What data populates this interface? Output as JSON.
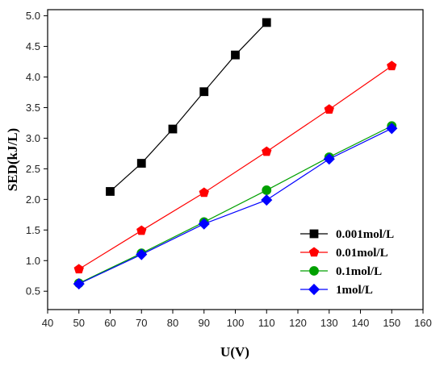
{
  "chart_data": {
    "type": "line",
    "xlabel": "U(V)",
    "ylabel": "SED(kJ/L)",
    "xlim": [
      40,
      160
    ],
    "ylim": [
      0.2,
      5.1
    ],
    "xticks": [
      40,
      50,
      60,
      70,
      80,
      90,
      100,
      110,
      120,
      130,
      140,
      150,
      160
    ],
    "yticks": [
      0.5,
      1.0,
      1.5,
      2.0,
      2.5,
      3.0,
      3.5,
      4.0,
      4.5,
      5.0
    ],
    "yticks_text": [
      "0.5",
      "1.0",
      "1.5",
      "2.0",
      "2.5",
      "3.0",
      "3.5",
      "4.0",
      "4.5",
      "5.0"
    ],
    "grid": false,
    "legend_position": "bottom-right",
    "series": [
      {
        "name": "0.001mol/L",
        "color": "#000000",
        "marker": "square",
        "x": [
          60,
          70,
          80,
          90,
          100,
          110
        ],
        "y": [
          2.13,
          2.59,
          3.15,
          3.76,
          4.36,
          4.89
        ]
      },
      {
        "name": "0.01mol/L",
        "color": "#ff0000",
        "marker": "pentagon",
        "x": [
          50,
          70,
          90,
          110,
          130,
          150
        ],
        "y": [
          0.86,
          1.49,
          2.11,
          2.78,
          3.47,
          4.18
        ]
      },
      {
        "name": "0.1mol/L",
        "color": "#00a000",
        "marker": "circle",
        "x": [
          50,
          70,
          90,
          110,
          130,
          150
        ],
        "y": [
          0.63,
          1.12,
          1.63,
          2.15,
          2.69,
          3.2
        ]
      },
      {
        "name": "1mol/L",
        "color": "#0000ff",
        "marker": "diamond",
        "x": [
          50,
          70,
          90,
          110,
          130,
          150
        ],
        "y": [
          0.62,
          1.1,
          1.6,
          1.99,
          2.66,
          3.16
        ]
      }
    ]
  }
}
